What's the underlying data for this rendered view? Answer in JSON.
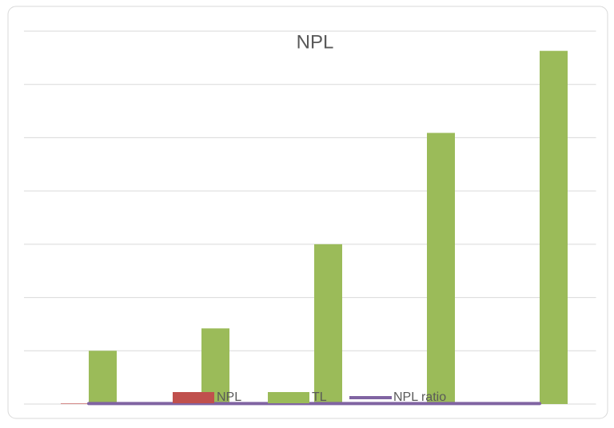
{
  "chart_data": {
    "type": "bar",
    "title": "NPL",
    "categories": [
      null,
      null,
      null,
      null,
      null
    ],
    "series": [
      {
        "name": "NPL",
        "color": "#c0504d",
        "values": [
          0.01,
          0,
          0,
          0,
          0.03
        ]
      },
      {
        "name": "TL",
        "color": "#9bbb59",
        "values": [
          1.0,
          1.42,
          3.0,
          5.09,
          6.63
        ]
      },
      {
        "name": "NPL ratio",
        "color": "#8064a2",
        "type": "line",
        "values": [
          0.01,
          0.01,
          0.01,
          0.01,
          0.01
        ]
      }
    ],
    "ylim": [
      0,
      7
    ],
    "yticks": [
      0,
      1,
      2,
      3,
      4,
      5,
      6,
      7
    ],
    "grid": true,
    "legend": "bottom"
  }
}
